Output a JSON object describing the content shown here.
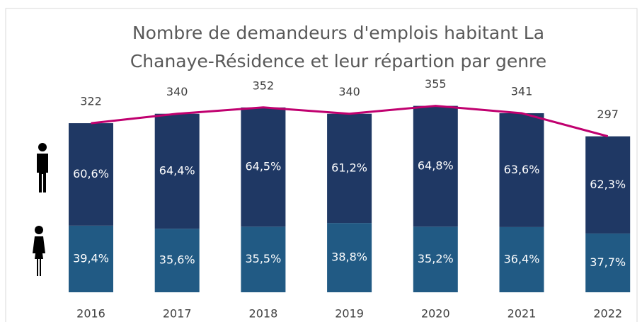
{
  "chart_data": {
    "type": "bar",
    "title": [
      "Nombre de demandeurs d'emplois habitant La",
      "Chanaye-Résidence et leur répartion par genre"
    ],
    "categories": [
      "2016",
      "2017",
      "2018",
      "2019",
      "2020",
      "2021",
      "2022"
    ],
    "totals": [
      322,
      340,
      352,
      340,
      355,
      341,
      297
    ],
    "line_color": "#c0006f",
    "series": [
      {
        "color": "#215a84",
        "values": [
          39.4,
          35.6,
          35.5,
          38.8,
          35.2,
          36.4,
          37.7
        ],
        "value_labels": [
          "39,4%",
          "35,6%",
          "35,5%",
          "38,8%",
          "35,2%",
          "36,4%",
          "37,7%"
        ]
      },
      {
        "color": "#1f3864",
        "values": [
          60.6,
          64.4,
          64.5,
          61.2,
          64.8,
          63.6,
          62.3
        ],
        "value_labels": [
          "60,6%",
          "64,4%",
          "64,5%",
          "61,2%",
          "64,8%",
          "63,6%",
          "62,3%"
        ]
      }
    ]
  }
}
